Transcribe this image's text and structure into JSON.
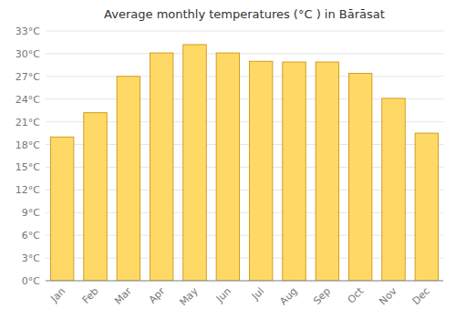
{
  "chart_data": {
    "type": "bar",
    "title": "Average monthly temperatures (°C ) in Bārāsat",
    "categories": [
      "Jan",
      "Feb",
      "Mar",
      "Apr",
      "May",
      "Jun",
      "Jul",
      "Aug",
      "Sep",
      "Oct",
      "Nov",
      "Dec"
    ],
    "values": [
      19.0,
      22.2,
      27.0,
      30.1,
      31.2,
      30.1,
      29.0,
      28.9,
      28.9,
      27.4,
      24.1,
      19.5
    ],
    "color": "#FFD966",
    "ylim": [
      0,
      33
    ],
    "yticks": [
      {
        "value": 0,
        "label": "0°C"
      },
      {
        "value": 3,
        "label": "3°C"
      },
      {
        "value": 6,
        "label": "6°C"
      },
      {
        "value": 9,
        "label": "9°C"
      },
      {
        "value": 12,
        "label": "12°C"
      },
      {
        "value": 15,
        "label": "15°C"
      },
      {
        "value": 18,
        "label": "18°C"
      },
      {
        "value": 21,
        "label": "21°C"
      },
      {
        "value": 24,
        "label": "24°C"
      },
      {
        "value": 27,
        "label": "27°C"
      },
      {
        "value": 30,
        "label": "30°C"
      },
      {
        "value": 33,
        "label": "33°C"
      }
    ],
    "grid": true
  }
}
